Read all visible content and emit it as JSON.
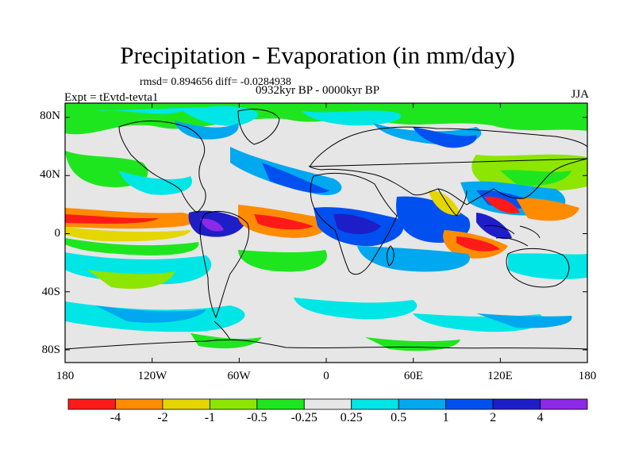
{
  "title": "Precipitation - Evaporation (in mm/day)",
  "stats": "rmsd= 0.894656 diff= -0.0284938",
  "experiment": "Expt = tEvtd-tevta1",
  "period": "0932kyr BP - 0000kyr BP",
  "season": "JJA",
  "map": {
    "lat_ticks": [
      "80N",
      "40N",
      "0",
      "40S",
      "80S"
    ],
    "lon_ticks": [
      "180",
      "120W",
      "60W",
      "0",
      "60E",
      "120E",
      "180"
    ]
  },
  "colorbar": {
    "labels": [
      "-4",
      "-2",
      "-1",
      "-0.5",
      "-0.25",
      "0.25",
      "0.5",
      "1",
      "2",
      "4"
    ],
    "colors": [
      "#ff1a1a",
      "#ff8c00",
      "#e6d600",
      "#8ce600",
      "#1ee61e",
      "#e6e6e6",
      "#00e6e6",
      "#00a8f0",
      "#0050f0",
      "#1e1ec8",
      "#8c28e6"
    ]
  }
}
